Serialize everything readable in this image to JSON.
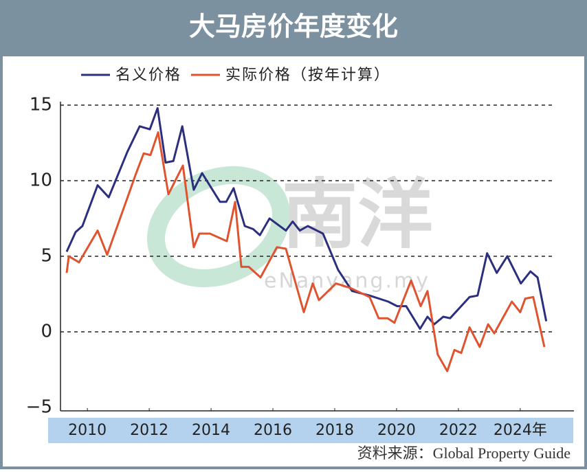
{
  "chart_data": {
    "type": "line",
    "title": "大马房价年度变化",
    "series": [
      {
        "name": "名义价格",
        "color": "#2b2f7e",
        "x": [
          2009.33,
          2009.62,
          2009.84,
          2010.33,
          2010.69,
          2011.29,
          2011.69,
          2012.02,
          2012.27,
          2012.53,
          2012.78,
          2013.07,
          2013.44,
          2013.71,
          2014.29,
          2014.49,
          2014.73,
          2015.09,
          2015.36,
          2015.58,
          2015.89,
          2016.42,
          2016.64,
          2016.87,
          2017.13,
          2017.62,
          2018.11,
          2018.56,
          2019.13,
          2019.73,
          2020.02,
          2020.31,
          2020.76,
          2021.0,
          2021.22,
          2021.51,
          2021.73,
          2022.36,
          2022.62,
          2022.93,
          2023.24,
          2023.58,
          2024.02,
          2024.33,
          2024.56,
          2024.84
        ],
        "values": [
          5.3,
          6.6,
          7.0,
          9.7,
          8.9,
          11.9,
          13.6,
          13.4,
          14.8,
          11.2,
          11.3,
          13.6,
          9.4,
          10.5,
          8.6,
          8.6,
          9.5,
          7.0,
          6.8,
          6.4,
          7.5,
          6.7,
          7.3,
          6.7,
          7.0,
          6.5,
          4.1,
          2.7,
          2.4,
          2.0,
          1.7,
          1.7,
          0.2,
          1.0,
          0.5,
          1.0,
          0.9,
          2.3,
          2.4,
          5.2,
          3.9,
          5.0,
          3.2,
          4.0,
          3.6,
          0.7
        ]
      },
      {
        "name": "实际价格（按年计算）",
        "color": "#e0532f",
        "x": [
          2009.33,
          2009.4,
          2009.73,
          2010.33,
          2010.64,
          2011.56,
          2011.82,
          2012.04,
          2012.29,
          2012.62,
          2013.09,
          2013.44,
          2013.62,
          2013.96,
          2014.51,
          2014.78,
          2014.98,
          2015.22,
          2015.6,
          2016.13,
          2016.42,
          2017.0,
          2017.29,
          2017.49,
          2018.04,
          2018.51,
          2019.13,
          2019.42,
          2019.71,
          2019.93,
          2020.47,
          2020.78,
          2021.0,
          2021.33,
          2021.64,
          2021.87,
          2022.09,
          2022.36,
          2022.69,
          2022.96,
          2023.16,
          2023.73,
          2024.0,
          2024.16,
          2024.42,
          2024.78
        ],
        "values": [
          3.9,
          5.0,
          4.6,
          6.7,
          5.1,
          10.4,
          11.8,
          11.7,
          13.2,
          9.1,
          11.0,
          5.6,
          6.5,
          6.5,
          6.0,
          8.6,
          4.3,
          4.3,
          3.6,
          5.6,
          5.5,
          1.3,
          3.2,
          2.1,
          3.2,
          2.9,
          2.3,
          0.9,
          0.9,
          0.6,
          3.4,
          1.7,
          2.7,
          -1.5,
          -2.6,
          -1.2,
          -1.4,
          0.3,
          -1.0,
          0.5,
          -0.1,
          2.0,
          1.3,
          2.2,
          2.3,
          -1.0
        ]
      }
    ],
    "xlim": [
      2009.13,
      2025.07
    ],
    "xticks": [
      2010,
      2012,
      2014,
      2016,
      2018,
      2020,
      2022,
      {
        "value": 2024,
        "label": "2024年"
      }
    ],
    "ylim": [
      -5,
      15
    ],
    "yticks": [
      {
        "value": -5,
        "label": "−5"
      },
      0,
      5,
      10,
      15
    ],
    "grid": true,
    "watermark": {
      "text": "南洋",
      "url": "eNanyang.my"
    },
    "source": "资料来源：Global Property Guide"
  }
}
